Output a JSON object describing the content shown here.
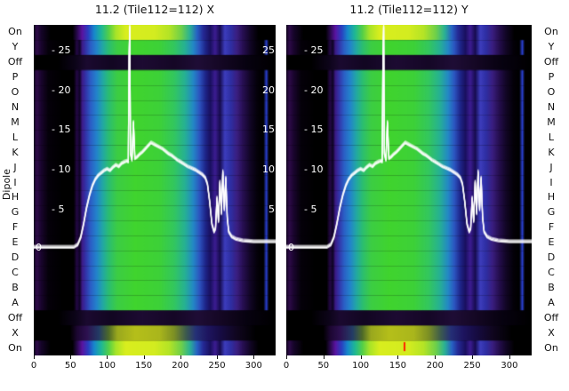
{
  "titles": {
    "left": "11.2 (Tile112=112) X",
    "right": "11.2 (Tile112=112) Y"
  },
  "axis": {
    "dipole_label": "Dipole",
    "row_labels": [
      "On",
      "Y",
      "Off",
      "P",
      "O",
      "N",
      "M",
      "L",
      "K",
      "J",
      "I",
      "H",
      "G",
      "F",
      "E",
      "D",
      "C",
      "B",
      "A",
      "Off",
      "X",
      "On"
    ],
    "x_ticks": [
      0,
      50,
      100,
      150,
      200,
      250,
      300
    ],
    "inner_y_ticks": [
      25,
      20,
      15,
      10,
      5
    ],
    "baseline_label": "0"
  },
  "chart_data": {
    "type": "heatmap",
    "title_left": "11.2 (Tile112=112) X",
    "title_right": "11.2 (Tile112=112) Y",
    "x_range": [
      0,
      330
    ],
    "overlay_value_range": [
      0,
      28
    ],
    "x_ticks": [
      0,
      50,
      100,
      150,
      200,
      250,
      300
    ],
    "inner_y_ticks": [
      25,
      20,
      15,
      10,
      5
    ],
    "rows": [
      {
        "label": "On",
        "style": "bright"
      },
      {
        "label": "Y",
        "style": "base"
      },
      {
        "label": "Off",
        "style": "off"
      },
      {
        "label": "P",
        "style": "base"
      },
      {
        "label": "O",
        "style": "base"
      },
      {
        "label": "N",
        "style": "base"
      },
      {
        "label": "M",
        "style": "base"
      },
      {
        "label": "L",
        "style": "base"
      },
      {
        "label": "K",
        "style": "base"
      },
      {
        "label": "J",
        "style": "base"
      },
      {
        "label": "I",
        "style": "base"
      },
      {
        "label": "H",
        "style": "base"
      },
      {
        "label": "G",
        "style": "base"
      },
      {
        "label": "F",
        "style": "base"
      },
      {
        "label": "E",
        "style": "base"
      },
      {
        "label": "D",
        "style": "base"
      },
      {
        "label": "C",
        "style": "base"
      },
      {
        "label": "B",
        "style": "base"
      },
      {
        "label": "A",
        "style": "base"
      },
      {
        "label": "Off",
        "style": "off"
      },
      {
        "label": "X",
        "style": "xrow"
      },
      {
        "label": "On",
        "style": "bright"
      }
    ],
    "gradients": {
      "base": [
        [
          0.0,
          "#10031d"
        ],
        [
          0.012,
          "#2e0b4a"
        ],
        [
          0.03,
          "#1a052e"
        ],
        [
          0.06,
          "#05010a"
        ],
        [
          0.12,
          "#000000"
        ],
        [
          0.165,
          "#000000"
        ],
        [
          0.178,
          "#240845"
        ],
        [
          0.19,
          "#0e0425"
        ],
        [
          0.2,
          "#3c1a86"
        ],
        [
          0.215,
          "#3333a8"
        ],
        [
          0.235,
          "#2b5ec6"
        ],
        [
          0.26,
          "#2383cb"
        ],
        [
          0.285,
          "#22a7a4"
        ],
        [
          0.31,
          "#2bbd72"
        ],
        [
          0.345,
          "#3ccd44"
        ],
        [
          0.42,
          "#40d42e"
        ],
        [
          0.52,
          "#3dd138"
        ],
        [
          0.58,
          "#33c75e"
        ],
        [
          0.625,
          "#26b193"
        ],
        [
          0.66,
          "#2387c6"
        ],
        [
          0.685,
          "#2c55c0"
        ],
        [
          0.71,
          "#1e2488"
        ],
        [
          0.73,
          "#191060"
        ],
        [
          0.75,
          "#3c1d92"
        ],
        [
          0.77,
          "#170c50"
        ],
        [
          0.79,
          "#3d3dbd"
        ],
        [
          0.815,
          "#2e2ea2"
        ],
        [
          0.84,
          "#3a1e80"
        ],
        [
          0.865,
          "#270f52"
        ],
        [
          0.895,
          "#120626"
        ],
        [
          0.925,
          "#040109"
        ],
        [
          0.95,
          "#000000"
        ],
        [
          0.962,
          "#2a3fd0"
        ],
        [
          0.972,
          "#000000"
        ],
        [
          1.0,
          "#000000"
        ]
      ],
      "bright": [
        [
          0.0,
          "#0c0216"
        ],
        [
          0.012,
          "#2e0b4a"
        ],
        [
          0.03,
          "#16052a"
        ],
        [
          0.07,
          "#000000"
        ],
        [
          0.16,
          "#000000"
        ],
        [
          0.18,
          "#2b0a50"
        ],
        [
          0.2,
          "#5a14a0"
        ],
        [
          0.225,
          "#2a3ec0"
        ],
        [
          0.25,
          "#1788cc"
        ],
        [
          0.28,
          "#1fb894"
        ],
        [
          0.31,
          "#53cf48"
        ],
        [
          0.34,
          "#a8e428"
        ],
        [
          0.38,
          "#d9ee1e"
        ],
        [
          0.5,
          "#d3ec20"
        ],
        [
          0.56,
          "#b4e426"
        ],
        [
          0.61,
          "#6ed04a"
        ],
        [
          0.645,
          "#2bb293"
        ],
        [
          0.675,
          "#2762c4"
        ],
        [
          0.7,
          "#252a96"
        ],
        [
          0.73,
          "#1a1060"
        ],
        [
          0.75,
          "#3c1d92"
        ],
        [
          0.77,
          "#170c50"
        ],
        [
          0.79,
          "#3d3dbd"
        ],
        [
          0.815,
          "#2e2ea2"
        ],
        [
          0.84,
          "#3a1e80"
        ],
        [
          0.865,
          "#270f52"
        ],
        [
          0.895,
          "#120626"
        ],
        [
          0.93,
          "#000000"
        ],
        [
          1.0,
          "#000000"
        ]
      ],
      "off": [
        [
          0.0,
          "#000000"
        ],
        [
          0.1,
          "#000000"
        ],
        [
          0.17,
          "#0c0418"
        ],
        [
          0.22,
          "#1b0a30"
        ],
        [
          0.32,
          "#120622"
        ],
        [
          0.45,
          "#1d0b32"
        ],
        [
          0.58,
          "#150726"
        ],
        [
          0.68,
          "#1f0d36"
        ],
        [
          0.78,
          "#140723"
        ],
        [
          0.88,
          "#070210"
        ],
        [
          1.0,
          "#000000"
        ]
      ],
      "xrow": [
        [
          0.0,
          "#000000"
        ],
        [
          0.15,
          "#000000"
        ],
        [
          0.18,
          "#1d0733"
        ],
        [
          0.22,
          "#2d1150"
        ],
        [
          0.27,
          "#233c66"
        ],
        [
          0.31,
          "#4e6a28"
        ],
        [
          0.345,
          "#9aa81e"
        ],
        [
          0.42,
          "#b5bf1a"
        ],
        [
          0.52,
          "#aab61c"
        ],
        [
          0.58,
          "#7d9024"
        ],
        [
          0.63,
          "#3c5a4e"
        ],
        [
          0.67,
          "#253077"
        ],
        [
          0.72,
          "#1e1560"
        ],
        [
          0.77,
          "#170c45"
        ],
        [
          0.84,
          "#10061f"
        ],
        [
          0.92,
          "#000000"
        ],
        [
          1.0,
          "#000000"
        ]
      ]
    },
    "overlay_line": {
      "color": "#ffffff",
      "zero_y_frac": 0.68,
      "unit_frac": 0.0241,
      "points": [
        [
          0,
          0.3
        ],
        [
          40,
          0.3
        ],
        [
          55,
          0.3
        ],
        [
          60,
          0.6
        ],
        [
          64,
          1.5
        ],
        [
          68,
          3.2
        ],
        [
          72,
          5.2
        ],
        [
          76,
          6.8
        ],
        [
          80,
          8.0
        ],
        [
          84,
          8.8
        ],
        [
          88,
          9.3
        ],
        [
          92,
          9.6
        ],
        [
          96,
          9.9
        ],
        [
          100,
          10.1
        ],
        [
          104,
          9.9
        ],
        [
          108,
          10.3
        ],
        [
          112,
          10.6
        ],
        [
          116,
          10.4
        ],
        [
          120,
          10.8
        ],
        [
          124,
          11.0
        ],
        [
          127,
          11.1
        ],
        [
          129,
          11.0
        ],
        [
          130,
          24.0
        ],
        [
          131,
          28.0
        ],
        [
          132,
          12.0
        ],
        [
          134,
          11.2
        ],
        [
          136,
          16.0
        ],
        [
          138,
          11.4
        ],
        [
          141,
          11.6
        ],
        [
          144,
          11.9
        ],
        [
          148,
          12.2
        ],
        [
          152,
          12.6
        ],
        [
          156,
          13.0
        ],
        [
          160,
          13.4
        ],
        [
          164,
          13.2
        ],
        [
          168,
          13.0
        ],
        [
          172,
          12.8
        ],
        [
          176,
          12.6
        ],
        [
          180,
          12.3
        ],
        [
          184,
          12.0
        ],
        [
          188,
          11.8
        ],
        [
          192,
          11.5
        ],
        [
          196,
          11.2
        ],
        [
          200,
          11.0
        ],
        [
          205,
          10.7
        ],
        [
          210,
          10.4
        ],
        [
          215,
          10.2
        ],
        [
          220,
          10.0
        ],
        [
          225,
          9.7
        ],
        [
          230,
          9.4
        ],
        [
          234,
          9.0
        ],
        [
          237,
          8.2
        ],
        [
          240,
          6.0
        ],
        [
          243,
          3.2
        ],
        [
          246,
          2.2
        ],
        [
          248,
          2.6
        ],
        [
          250,
          6.5
        ],
        [
          252,
          3.5
        ],
        [
          254,
          8.5
        ],
        [
          256,
          4.5
        ],
        [
          258,
          9.8
        ],
        [
          260,
          5.0
        ],
        [
          262,
          9.0
        ],
        [
          264,
          4.0
        ],
        [
          266,
          2.2
        ],
        [
          270,
          1.6
        ],
        [
          276,
          1.3
        ],
        [
          285,
          1.1
        ],
        [
          300,
          1.0
        ],
        [
          315,
          1.0
        ],
        [
          330,
          1.0
        ]
      ]
    },
    "red_marker": {
      "panel": "right",
      "x": 159,
      "row": 21,
      "color": "#ff2200"
    }
  }
}
